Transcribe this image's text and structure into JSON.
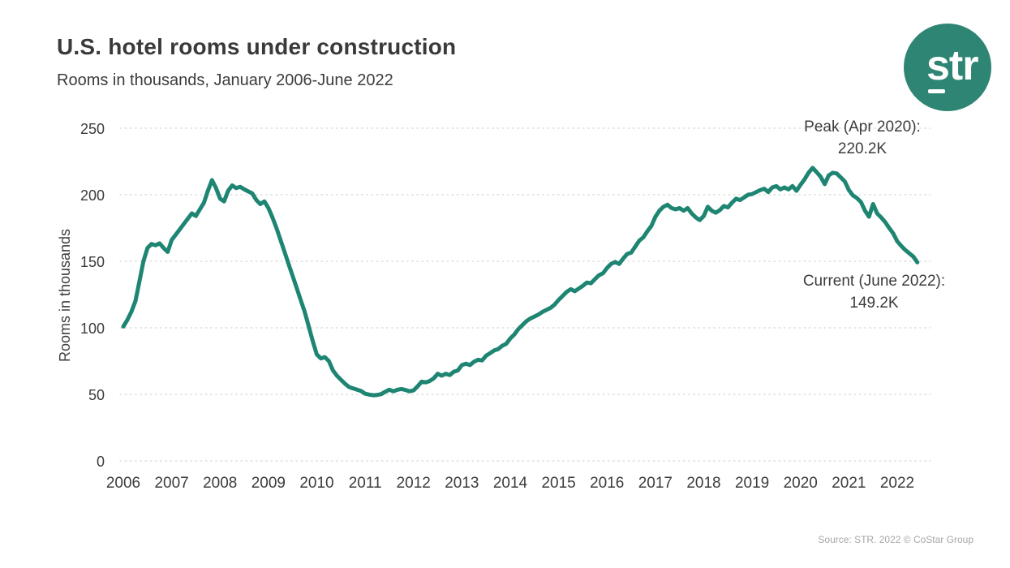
{
  "header": {
    "title": "U.S. hotel rooms under construction",
    "subtitle": "Rooms in thousands, January 2006-June 2022"
  },
  "logo": {
    "text": "str",
    "circle_color": "#2E8574"
  },
  "annotations": {
    "peak": {
      "line1": "Peak (Apr 2020):",
      "line2": "220.2K"
    },
    "current": {
      "line1": "Current (June 2022):",
      "line2": "149.2K"
    }
  },
  "footer": {
    "source": "Source: STR. 2022 © CoStar Group"
  },
  "chart_data": {
    "type": "line",
    "title": "U.S. hotel rooms under construction",
    "subtitle": "Rooms in thousands, January 2006-June 2022",
    "xlabel": "",
    "ylabel": "Rooms in thousands",
    "ylim": [
      0,
      250
    ],
    "y_ticks": [
      0,
      50,
      100,
      150,
      200,
      250
    ],
    "x_ticks": [
      "2006",
      "2007",
      "2008",
      "2009",
      "2010",
      "2011",
      "2012",
      "2013",
      "2014",
      "2015",
      "2016",
      "2017",
      "2018",
      "2019",
      "2020",
      "2021",
      "2022"
    ],
    "grid": "horizontal-dotted",
    "legend": "none",
    "line_color": "#1E8573",
    "peak": {
      "month": "2020-04",
      "value": 220.2,
      "label": "Peak (Apr 2020): 220.2K"
    },
    "current": {
      "month": "2022-06",
      "value": 149.2,
      "label": "Current (June 2022): 149.2K"
    },
    "series": [
      {
        "name": "U.S. hotel rooms under construction (thousands)",
        "frequency": "monthly",
        "start": "2006-01",
        "end": "2022-06",
        "values": [
          101,
          106,
          112,
          120,
          135,
          150,
          160,
          163,
          162,
          163.5,
          160,
          157,
          166,
          170,
          174,
          178,
          182,
          186,
          184,
          189,
          194,
          203,
          211,
          205,
          197,
          195,
          203,
          207,
          205,
          206,
          204,
          202.5,
          201,
          196,
          193,
          195,
          190,
          183,
          175,
          166,
          157,
          148,
          139,
          130,
          121,
          112,
          101,
          90,
          80,
          77,
          78,
          75,
          68,
          64,
          61,
          58,
          55.5,
          54.5,
          53.5,
          52.5,
          50.5,
          49.8,
          49.3,
          49.6,
          50.2,
          52,
          53.5,
          52.3,
          53.5,
          54,
          53.3,
          52.3,
          53,
          56,
          59.5,
          59,
          60,
          62,
          65.5,
          64,
          65.5,
          64.5,
          67,
          68,
          72,
          73,
          72,
          74.5,
          76,
          75.5,
          79,
          81,
          83,
          84,
          86.5,
          88,
          92,
          95,
          99,
          102,
          105,
          107,
          108.5,
          110,
          112,
          113.5,
          115,
          117.5,
          121,
          124,
          127,
          129,
          127.5,
          129.5,
          131.5,
          134,
          133.5,
          136.5,
          139.5,
          141,
          145,
          148,
          149.5,
          148,
          152,
          155.5,
          156.5,
          161,
          165.5,
          168,
          172.5,
          176.5,
          183.5,
          188,
          191,
          192.5,
          190,
          189,
          190,
          188,
          190,
          186,
          183,
          181,
          184,
          191,
          188,
          186.5,
          188.5,
          191.5,
          190.5,
          194,
          197,
          196,
          198,
          200,
          200.5,
          202,
          203.5,
          204.5,
          202,
          205.5,
          206.5,
          204,
          205.5,
          204,
          206.5,
          203,
          207.5,
          211.5,
          216.5,
          220.2,
          217,
          213.5,
          208,
          214.5,
          216.5,
          216,
          213,
          210,
          203.5,
          199.5,
          197.5,
          194.5,
          188,
          183.5,
          193,
          186,
          183,
          179.5,
          175,
          171,
          165,
          161.5,
          158.5,
          156,
          153.5,
          149.2
        ]
      }
    ]
  }
}
